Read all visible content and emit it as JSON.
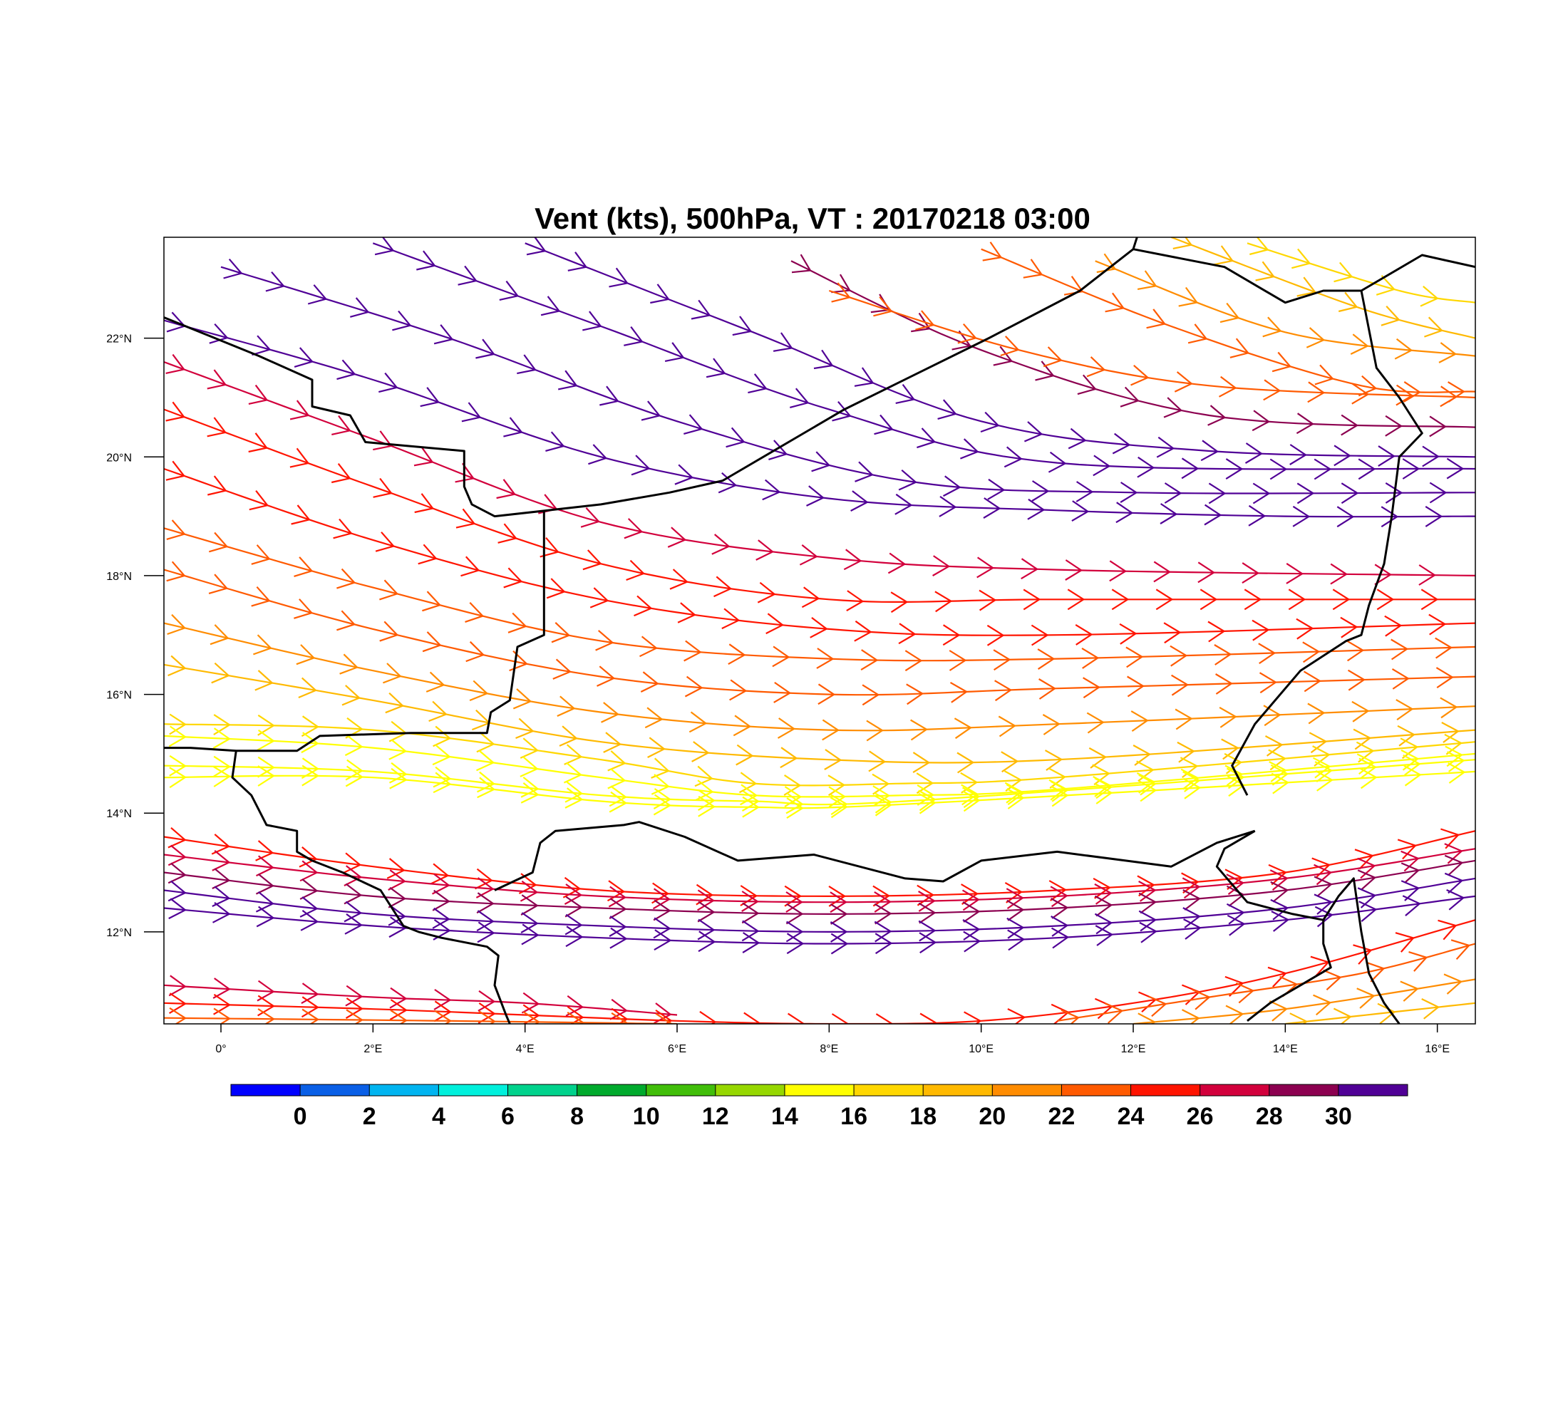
{
  "title": "Vent (kts), 500hPa, VT : 20170218  03:00",
  "map": {
    "lon_range": [
      -0.75,
      16.5
    ],
    "lat_range": [
      10.45,
      23.7
    ],
    "x_ticks": [
      {
        "value": 0,
        "label": "0°"
      },
      {
        "value": 2,
        "label": "2°E"
      },
      {
        "value": 4,
        "label": "4°E"
      },
      {
        "value": 6,
        "label": "6°E"
      },
      {
        "value": 8,
        "label": "8°E"
      },
      {
        "value": 10,
        "label": "10°E"
      },
      {
        "value": 12,
        "label": "12°E"
      },
      {
        "value": 14,
        "label": "14°E"
      },
      {
        "value": 16,
        "label": "16°E"
      }
    ],
    "y_ticks": [
      {
        "value": 12,
        "label": "12°N"
      },
      {
        "value": 14,
        "label": "14°N"
      },
      {
        "value": 16,
        "label": "16°N"
      },
      {
        "value": 18,
        "label": "18°N"
      },
      {
        "value": 20,
        "label": "20°N"
      },
      {
        "value": 22,
        "label": "22°N"
      }
    ],
    "borders": [
      [
        [
          -0.75,
          22.35
        ],
        [
          0.5,
          21.7
        ],
        [
          1.2,
          21.3
        ],
        [
          1.2,
          20.85
        ],
        [
          1.7,
          20.7
        ],
        [
          1.9,
          20.25
        ],
        [
          3.2,
          20.1
        ],
        [
          3.2,
          19.5
        ],
        [
          3.3,
          19.2
        ],
        [
          3.6,
          19.0
        ],
        [
          4.3,
          19.1
        ],
        [
          5.0,
          19.2
        ],
        [
          5.9,
          19.4
        ],
        [
          6.6,
          19.6
        ],
        [
          8.2,
          20.8
        ],
        [
          10.1,
          22.0
        ],
        [
          11.3,
          22.8
        ],
        [
          12.0,
          23.5
        ],
        [
          12.05,
          23.7
        ]
      ],
      [
        [
          12.0,
          23.5
        ],
        [
          13.2,
          23.2
        ],
        [
          14.0,
          22.6
        ],
        [
          14.5,
          22.8
        ],
        [
          15.0,
          22.8
        ],
        [
          15.8,
          23.4
        ],
        [
          16.5,
          23.2
        ]
      ],
      [
        [
          15.0,
          22.8
        ],
        [
          15.2,
          21.5
        ],
        [
          15.5,
          21.0
        ],
        [
          15.8,
          20.4
        ],
        [
          15.5,
          20.0
        ],
        [
          15.4,
          19.0
        ],
        [
          15.3,
          18.2
        ],
        [
          15.1,
          17.5
        ],
        [
          15.0,
          17.0
        ],
        [
          14.8,
          16.9
        ],
        [
          14.2,
          16.4
        ],
        [
          13.6,
          15.5
        ],
        [
          13.3,
          14.8
        ],
        [
          13.5,
          14.3
        ]
      ],
      [
        [
          4.25,
          19.1
        ],
        [
          4.25,
          17.0
        ],
        [
          3.9,
          16.8
        ],
        [
          3.8,
          15.9
        ],
        [
          3.55,
          15.7
        ],
        [
          3.5,
          15.35
        ],
        [
          2.5,
          15.35
        ],
        [
          1.3,
          15.3
        ],
        [
          1.0,
          15.05
        ],
        [
          0.2,
          15.05
        ],
        [
          -0.4,
          15.1
        ],
        [
          -0.75,
          15.1
        ]
      ],
      [
        [
          0.2,
          15.05
        ],
        [
          0.15,
          14.6
        ],
        [
          0.4,
          14.3
        ],
        [
          0.6,
          13.8
        ],
        [
          1.0,
          13.7
        ],
        [
          1.0,
          13.35
        ],
        [
          1.2,
          13.2
        ],
        [
          1.6,
          13.0
        ],
        [
          2.1,
          12.7
        ],
        [
          2.25,
          12.4
        ],
        [
          2.4,
          12.1
        ],
        [
          2.6,
          12.0
        ],
        [
          2.9,
          11.9
        ],
        [
          3.5,
          11.75
        ],
        [
          3.65,
          11.6
        ],
        [
          3.6,
          11.1
        ],
        [
          3.75,
          10.6
        ],
        [
          3.8,
          10.45
        ]
      ],
      [
        [
          3.6,
          12.7
        ],
        [
          4.1,
          13.0
        ],
        [
          4.2,
          13.5
        ],
        [
          4.4,
          13.7
        ],
        [
          5.3,
          13.8
        ],
        [
          5.5,
          13.85
        ],
        [
          6.1,
          13.6
        ],
        [
          6.8,
          13.2
        ],
        [
          7.8,
          13.3
        ],
        [
          9.0,
          12.9
        ],
        [
          9.5,
          12.85
        ],
        [
          10.0,
          13.2
        ],
        [
          11.0,
          13.35
        ],
        [
          11.9,
          13.2
        ],
        [
          12.5,
          13.1
        ],
        [
          13.1,
          13.5
        ],
        [
          13.6,
          13.7
        ]
      ],
      [
        [
          13.6,
          13.7
        ],
        [
          13.2,
          13.4
        ],
        [
          13.1,
          13.1
        ],
        [
          13.5,
          12.5
        ],
        [
          14.1,
          12.3
        ],
        [
          14.5,
          12.2
        ],
        [
          14.5,
          11.8
        ],
        [
          14.6,
          11.4
        ],
        [
          14.2,
          11.1
        ],
        [
          13.8,
          10.8
        ],
        [
          13.5,
          10.5
        ]
      ],
      [
        [
          14.5,
          12.2
        ],
        [
          14.7,
          12.6
        ],
        [
          14.9,
          12.9
        ],
        [
          15.0,
          12.0
        ],
        [
          15.1,
          11.3
        ],
        [
          15.3,
          10.8
        ],
        [
          15.5,
          10.45
        ]
      ]
    ]
  },
  "colorbar": {
    "colors": [
      "#0000ff",
      "#0a5fe6",
      "#00b4f0",
      "#00f0dc",
      "#00d28c",
      "#00aa2d",
      "#41be0a",
      "#96d700",
      "#ffff00",
      "#ffd700",
      "#ffb900",
      "#ff8c00",
      "#ff5a00",
      "#ff1400",
      "#d2003c",
      "#8c0050",
      "#500096"
    ],
    "labels": [
      "0",
      "2",
      "4",
      "6",
      "8",
      "10",
      "12",
      "14",
      "16",
      "18",
      "20",
      "22",
      "24",
      "26",
      "28",
      "30"
    ]
  },
  "chart_data": {
    "type": "streamline",
    "variable": "Vent (kts)",
    "level": "500hPa",
    "valid_time": "20170218  03:00",
    "streamlines": [
      {
        "speed": 33,
        "points": [
          [
            -0.75,
            22.3
          ],
          [
            2.0,
            21.3
          ],
          [
            5.0,
            20.0
          ],
          [
            8.0,
            19.3
          ],
          [
            11.0,
            19.1
          ],
          [
            14.0,
            19.0
          ],
          [
            16.5,
            19.0
          ]
        ]
      },
      {
        "speed": 33,
        "points": [
          [
            0.0,
            23.2
          ],
          [
            3.0,
            22.0
          ],
          [
            6.0,
            20.6
          ],
          [
            9.0,
            19.6
          ],
          [
            12.0,
            19.4
          ],
          [
            16.5,
            19.4
          ]
        ]
      },
      {
        "speed": 33,
        "points": [
          [
            2.0,
            23.6
          ],
          [
            5.0,
            22.2
          ],
          [
            8.0,
            20.8
          ],
          [
            11.0,
            19.9
          ],
          [
            16.5,
            19.8
          ]
        ]
      },
      {
        "speed": 32,
        "points": [
          [
            4.0,
            23.6
          ],
          [
            7.0,
            22.1
          ],
          [
            10.0,
            20.6
          ],
          [
            13.0,
            20.1
          ],
          [
            16.5,
            20.0
          ]
        ]
      },
      {
        "speed": 31,
        "points": [
          [
            7.5,
            23.3
          ],
          [
            10.0,
            21.8
          ],
          [
            13.0,
            20.7
          ],
          [
            16.5,
            20.5
          ]
        ]
      },
      {
        "speed": 25,
        "points": [
          [
            8.0,
            22.8
          ],
          [
            10.5,
            21.8
          ],
          [
            13.0,
            21.2
          ],
          [
            16.5,
            21.0
          ]
        ]
      },
      {
        "speed": 24,
        "points": [
          [
            10.0,
            23.5
          ],
          [
            12.5,
            22.2
          ],
          [
            15.0,
            21.2
          ],
          [
            16.5,
            21.1
          ]
        ]
      },
      {
        "speed": 22,
        "points": [
          [
            11.5,
            23.3
          ],
          [
            14.0,
            22.1
          ],
          [
            16.5,
            21.7
          ]
        ]
      },
      {
        "speed": 20,
        "points": [
          [
            12.5,
            23.7
          ],
          [
            15.0,
            22.5
          ],
          [
            16.5,
            22.0
          ]
        ]
      },
      {
        "speed": 18,
        "points": [
          [
            13.5,
            23.6
          ],
          [
            15.5,
            22.8
          ],
          [
            16.5,
            22.6
          ]
        ]
      },
      {
        "speed": 29,
        "points": [
          [
            -0.75,
            21.6
          ],
          [
            2.0,
            20.3
          ],
          [
            5.0,
            18.9
          ],
          [
            8.0,
            18.3
          ],
          [
            11.0,
            18.1
          ],
          [
            16.5,
            18.0
          ]
        ]
      },
      {
        "speed": 27,
        "points": [
          [
            -0.75,
            20.8
          ],
          [
            2.0,
            19.5
          ],
          [
            5.0,
            18.2
          ],
          [
            8.0,
            17.6
          ],
          [
            11.0,
            17.6
          ],
          [
            16.5,
            17.6
          ]
        ]
      },
      {
        "speed": 26,
        "points": [
          [
            -0.75,
            19.8
          ],
          [
            2.0,
            18.6
          ],
          [
            5.0,
            17.6
          ],
          [
            8.0,
            17.1
          ],
          [
            11.0,
            17.0
          ],
          [
            16.5,
            17.2
          ]
        ]
      },
      {
        "speed": 25,
        "points": [
          [
            -0.75,
            18.8
          ],
          [
            2.0,
            17.8
          ],
          [
            5.0,
            16.9
          ],
          [
            8.0,
            16.6
          ],
          [
            11.0,
            16.6
          ],
          [
            16.5,
            16.8
          ]
        ]
      },
      {
        "speed": 24,
        "points": [
          [
            -0.75,
            18.1
          ],
          [
            2.0,
            17.1
          ],
          [
            5.0,
            16.3
          ],
          [
            8.0,
            16.0
          ],
          [
            11.0,
            16.1
          ],
          [
            16.5,
            16.3
          ]
        ]
      },
      {
        "speed": 23,
        "points": [
          [
            -0.75,
            17.2
          ],
          [
            2.0,
            16.4
          ],
          [
            5.0,
            15.7
          ],
          [
            8.0,
            15.4
          ],
          [
            11.0,
            15.5
          ],
          [
            16.5,
            15.8
          ]
        ]
      },
      {
        "speed": 21,
        "points": [
          [
            -0.75,
            16.5
          ],
          [
            2.0,
            15.9
          ],
          [
            5.0,
            15.2
          ],
          [
            8.0,
            14.9
          ],
          [
            11.0,
            14.9
          ],
          [
            16.5,
            15.4
          ]
        ]
      },
      {
        "speed": 18,
        "points": [
          [
            -0.75,
            15.5
          ],
          [
            2.0,
            15.4
          ],
          [
            5.0,
            14.9
          ],
          [
            7.0,
            14.5
          ],
          [
            9.0,
            14.5
          ],
          [
            11.0,
            14.6
          ],
          [
            16.5,
            15.2
          ]
        ]
      },
      {
        "speed": 17,
        "points": [
          [
            -0.75,
            15.3
          ],
          [
            2.0,
            15.1
          ],
          [
            5.0,
            14.6
          ],
          [
            7.0,
            14.3
          ],
          [
            9.0,
            14.3
          ],
          [
            11.0,
            14.4
          ],
          [
            16.5,
            15.0
          ]
        ]
      },
      {
        "speed": 16,
        "points": [
          [
            -0.75,
            14.8
          ],
          [
            2.0,
            14.7
          ],
          [
            5.0,
            14.3
          ],
          [
            7.0,
            14.2
          ],
          [
            9.0,
            14.2
          ],
          [
            16.5,
            14.9
          ]
        ]
      },
      {
        "speed": 16,
        "points": [
          [
            -0.75,
            14.6
          ],
          [
            2.0,
            14.6
          ],
          [
            5.0,
            14.2
          ],
          [
            7.0,
            14.1
          ],
          [
            9.0,
            14.15
          ],
          [
            16.5,
            14.7
          ]
        ]
      },
      {
        "speed": 27,
        "points": [
          [
            -0.75,
            13.6
          ],
          [
            2.0,
            13.1
          ],
          [
            5.0,
            12.7
          ],
          [
            8.0,
            12.6
          ],
          [
            11.0,
            12.7
          ],
          [
            14.0,
            13.0
          ],
          [
            16.5,
            13.7
          ]
        ]
      },
      {
        "speed": 28,
        "points": [
          [
            -0.75,
            13.3
          ],
          [
            2.0,
            12.9
          ],
          [
            5.0,
            12.6
          ],
          [
            8.0,
            12.5
          ],
          [
            11.0,
            12.6
          ],
          [
            14.0,
            12.9
          ],
          [
            16.5,
            13.4
          ]
        ]
      },
      {
        "speed": 30,
        "points": [
          [
            -0.75,
            13.0
          ],
          [
            2.0,
            12.6
          ],
          [
            5.0,
            12.4
          ],
          [
            8.0,
            12.3
          ],
          [
            11.0,
            12.4
          ],
          [
            14.0,
            12.7
          ],
          [
            16.5,
            13.2
          ]
        ]
      },
      {
        "speed": 32,
        "points": [
          [
            -0.75,
            12.7
          ],
          [
            2.0,
            12.3
          ],
          [
            5.0,
            12.1
          ],
          [
            8.0,
            12.0
          ],
          [
            11.0,
            12.1
          ],
          [
            14.0,
            12.4
          ],
          [
            16.5,
            12.9
          ]
        ]
      },
      {
        "speed": 33,
        "points": [
          [
            -0.75,
            12.4
          ],
          [
            2.0,
            12.1
          ],
          [
            5.0,
            11.9
          ],
          [
            8.0,
            11.8
          ],
          [
            11.0,
            11.9
          ],
          [
            14.0,
            12.2
          ],
          [
            16.5,
            12.6
          ]
        ]
      },
      {
        "speed": 29,
        "points": [
          [
            -0.75,
            11.1
          ],
          [
            2.0,
            10.9
          ],
          [
            4.0,
            10.8
          ],
          [
            6.0,
            10.6
          ]
        ]
      },
      {
        "speed": 27,
        "points": [
          [
            -0.75,
            10.8
          ],
          [
            2.0,
            10.7
          ],
          [
            4.0,
            10.6
          ],
          [
            6.0,
            10.5
          ],
          [
            8.0,
            10.45
          ],
          [
            10.0,
            10.5
          ],
          [
            12.0,
            10.8
          ],
          [
            14.0,
            11.3
          ],
          [
            16.5,
            12.2
          ]
        ]
      },
      {
        "speed": 25,
        "points": [
          [
            -0.75,
            10.55
          ],
          [
            3.0,
            10.5
          ],
          [
            6.0,
            10.45
          ]
        ]
      },
      {
        "speed": 24,
        "points": [
          [
            11.0,
            10.5
          ],
          [
            13.0,
            10.9
          ],
          [
            15.0,
            11.3
          ],
          [
            16.5,
            11.8
          ]
        ]
      },
      {
        "speed": 22,
        "points": [
          [
            12.0,
            10.45
          ],
          [
            14.0,
            10.7
          ],
          [
            16.5,
            11.2
          ]
        ]
      },
      {
        "speed": 20,
        "points": [
          [
            14.0,
            10.45
          ],
          [
            16.5,
            10.8
          ]
        ]
      }
    ]
  }
}
